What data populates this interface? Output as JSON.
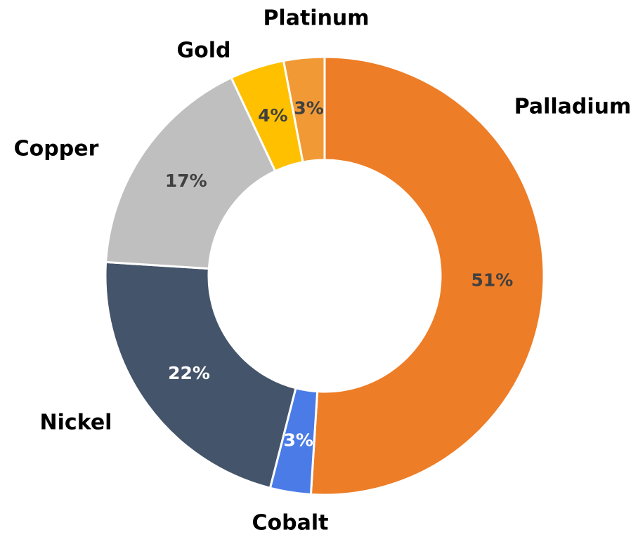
{
  "chart_data": {
    "type": "donut",
    "categories": [
      "Palladium",
      "Cobalt",
      "Nickel",
      "Copper",
      "Gold",
      "Platinum"
    ],
    "values": [
      51,
      3,
      22,
      17,
      4,
      3
    ],
    "value_labels": [
      "51%",
      "3%",
      "22%",
      "17%",
      "4%",
      "3%"
    ],
    "colors": [
      "#ED7D27",
      "#4A7BE6",
      "#44546A",
      "#BFBFBF",
      "#FFC000",
      "#F19A35"
    ]
  }
}
